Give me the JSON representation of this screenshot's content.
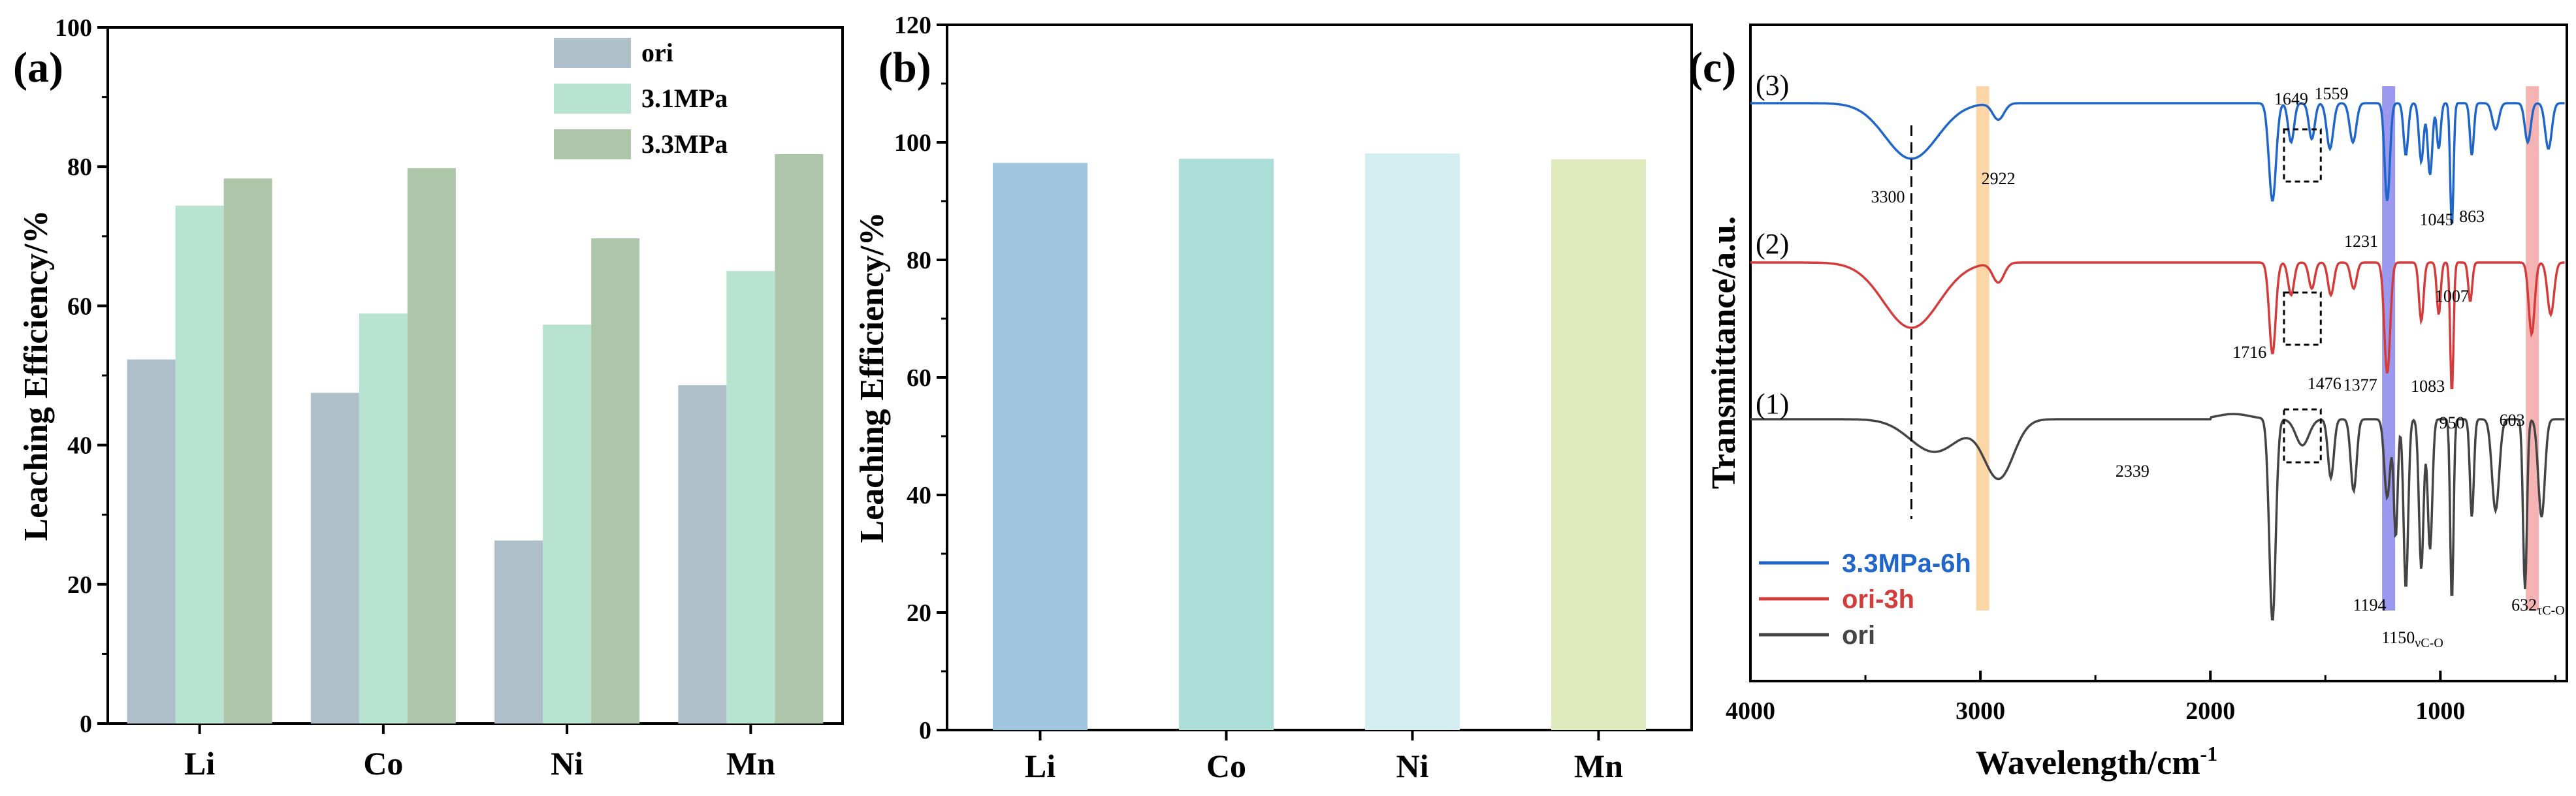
{
  "chart_data": [
    {
      "panel": "(a)",
      "type": "bar",
      "categories": [
        "Li",
        "Co",
        "Ni",
        "Mn"
      ],
      "series": [
        {
          "name": "ori",
          "color": "#aebfca",
          "values": [
            52.3,
            47.5,
            26.3,
            48.6
          ]
        },
        {
          "name": "3.1MPa",
          "color": "#b8e3d1",
          "values": [
            74.4,
            58.9,
            57.3,
            65.0
          ]
        },
        {
          "name": "3.3MPa",
          "color": "#adc6a9",
          "values": [
            78.3,
            79.8,
            69.7,
            81.8
          ]
        }
      ],
      "ylabel": "Leaching Efficiency/%",
      "ylim": [
        0,
        100
      ],
      "yticks": [
        "0",
        "20",
        "40",
        "60",
        "80",
        "100"
      ],
      "legend_position": "top-right"
    },
    {
      "panel": "(b)",
      "type": "bar",
      "categories": [
        "Li",
        "Co",
        "Ni",
        "Mn"
      ],
      "values": [
        96.5,
        97.2,
        98.1,
        97.1
      ],
      "colors": [
        "#a0c6e0",
        "#acdfd8",
        "#d4eef1",
        "#dfeabe"
      ],
      "ylabel": "Leaching Efficiency/%",
      "ylim": [
        0,
        120
      ],
      "yticks": [
        "0",
        "20",
        "40",
        "60",
        "80",
        "100",
        "120"
      ]
    },
    {
      "panel": "(c)",
      "type": "line",
      "xlabel": "Wavelength/cm",
      "xlabel_sup": "-1",
      "ylabel": "Transmittance/a.u.",
      "xlim": [
        4000,
        450
      ],
      "xticks": [
        "4000",
        "3000",
        "2000",
        "1000"
      ],
      "series": [
        {
          "name": "3.3MPa-6h",
          "curve_label": "(3)",
          "color": "#1f66c8"
        },
        {
          "name": "ori-3h",
          "curve_label": "(2)",
          "color": "#d43c3c"
        },
        {
          "name": "ori",
          "curve_label": "(1)",
          "color": "#444444"
        }
      ],
      "highlight_bands": [
        {
          "center": 2990,
          "color": "#fbcf96"
        },
        {
          "center": 1225,
          "color": "#8a86ec"
        },
        {
          "center": 600,
          "color": "#f4a6a6"
        }
      ],
      "annotations": [
        "3300",
        "2922",
        "1649",
        "1559",
        "1231",
        "1045",
        "863",
        "1716",
        "1476",
        "1377",
        "1083",
        "1007",
        "950",
        "603",
        "2339",
        "1194",
        "1150",
        "632"
      ],
      "annotation_subscripts": {
        "1150": "νC-O",
        "632": "τC-O"
      }
    }
  ]
}
